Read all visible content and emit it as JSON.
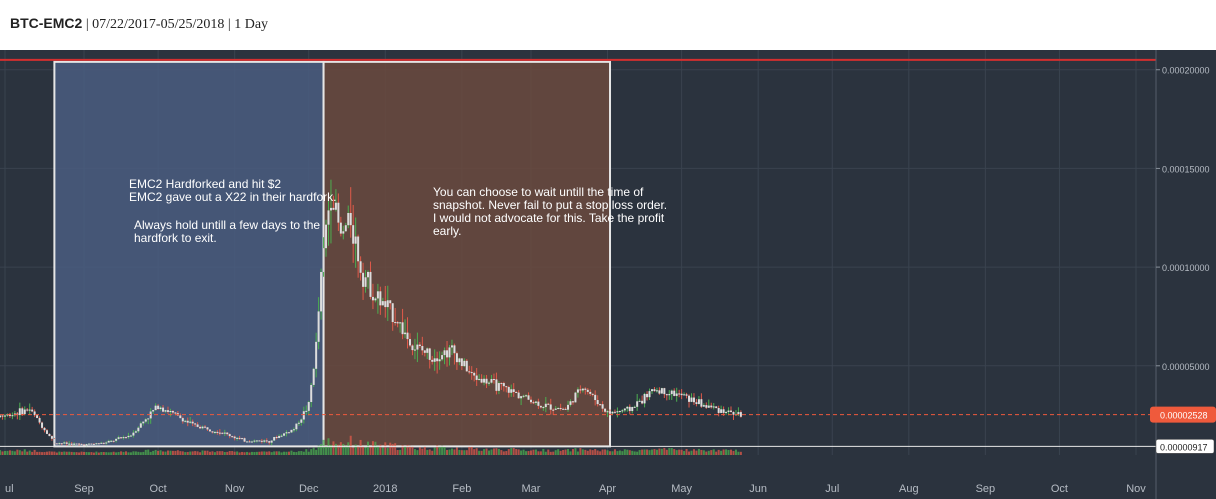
{
  "header": {
    "symbol": "BTC-EMC2",
    "separator": "|",
    "date_range": "07/22/2017-05/25/2018",
    "interval": "1 Day"
  },
  "colors": {
    "background": "#2b333e",
    "grid": "#3a434f",
    "candle_up": "#4caf50",
    "candle_down": "#e05a4a",
    "candle_body": "#dddddd",
    "resistance_line": "#d32f2f",
    "current_price_tag": "#ef5a3c",
    "box_blue": "#4a5d80",
    "box_brown": "#6b4a3e"
  },
  "annotations": {
    "box1_text_1": "EMC2 Hardforked and hit $2\nEMC2 gave out a X22 in their hardfork.",
    "box1_text_2": "Always hold untill a few days to the\nhardfork to exit.",
    "box2_text": "You can choose to wait untill the time of\nsnapshot. Never fail to put a stop loss order.\nI would not advocate for this. Take the profit\nearly."
  },
  "chart_data": {
    "type": "candlestick",
    "x_axis": {
      "ticks": [
        "ul",
        "Sep",
        "Oct",
        "Nov",
        "Dec",
        "2018",
        "Feb",
        "Mar",
        "Apr",
        "May",
        "Jun",
        "Jul",
        "Aug",
        "Sep",
        "Oct",
        "Nov"
      ],
      "tick_dates": [
        "2017-07-31",
        "2017-09-01",
        "2017-10-01",
        "2017-11-01",
        "2017-12-01",
        "2018-01-01",
        "2018-02-01",
        "2018-03-01",
        "2018-04-01",
        "2018-05-01",
        "2018-06-01",
        "2018-07-01",
        "2018-08-01",
        "2018-09-01",
        "2018-10-01",
        "2018-11-01"
      ]
    },
    "y_axis": {
      "ticks": [
        5e-05,
        0.0001,
        0.00015,
        0.0002
      ],
      "tick_labels": [
        "0.00005000",
        "0.00010000",
        "0.00015000",
        "0.00020000"
      ],
      "range": [
        4.8e-06,
        0.00021
      ]
    },
    "current_price": 2.528e-05,
    "current_price_label": "0.00002528",
    "low_price": 9.17e-06,
    "low_price_label": "0.00000917",
    "resistance_level": 0.000205,
    "regions": [
      {
        "start": "2017-08-20",
        "end": "2017-12-07",
        "top": 0.000204,
        "bottom": 9.17e-06
      },
      {
        "start": "2017-12-07",
        "end": "2018-04-02",
        "top": 0.000204,
        "bottom": 9.17e-06
      }
    ],
    "price_path": [
      [
        "2017-07-22",
        2.4e-05
      ],
      [
        "2017-08-01",
        2.5e-05
      ],
      [
        "2017-08-10",
        2.8e-05
      ],
      [
        "2017-08-20",
        1.1e-05
      ],
      [
        "2017-09-01",
        1e-05
      ],
      [
        "2017-09-10",
        1.1e-05
      ],
      [
        "2017-09-20",
        1.5e-05
      ],
      [
        "2017-10-01",
        3e-05
      ],
      [
        "2017-10-08",
        2.5e-05
      ],
      [
        "2017-10-15",
        2e-05
      ],
      [
        "2017-10-25",
        1.7e-05
      ],
      [
        "2017-11-05",
        1.2e-05
      ],
      [
        "2017-11-15",
        1.2e-05
      ],
      [
        "2017-11-25",
        1.8e-05
      ],
      [
        "2017-12-01",
        3e-05
      ],
      [
        "2017-12-04",
        6e-05
      ],
      [
        "2017-12-06",
        9.5e-05
      ],
      [
        "2017-12-08",
        0.00012
      ],
      [
        "2017-12-10",
        0.00014
      ],
      [
        "2017-12-14",
        0.000115
      ],
      [
        "2017-12-18",
        0.000125
      ],
      [
        "2017-12-22",
        0.0001
      ],
      [
        "2017-12-28",
        8.5e-05
      ],
      [
        "2018-01-05",
        7.5e-05
      ],
      [
        "2018-01-12",
        6e-05
      ],
      [
        "2018-01-20",
        5.5e-05
      ],
      [
        "2018-01-28",
        5.8e-05
      ],
      [
        "2018-02-05",
        4.5e-05
      ],
      [
        "2018-02-15",
        4e-05
      ],
      [
        "2018-02-25",
        3.5e-05
      ],
      [
        "2018-03-05",
        3e-05
      ],
      [
        "2018-03-15",
        2.8e-05
      ],
      [
        "2018-03-22",
        4e-05
      ],
      [
        "2018-04-01",
        2.6e-05
      ],
      [
        "2018-04-10",
        2.8e-05
      ],
      [
        "2018-04-20",
        3.8e-05
      ],
      [
        "2018-05-01",
        3.5e-05
      ],
      [
        "2018-05-10",
        3e-05
      ],
      [
        "2018-05-25",
        2.5e-05
      ]
    ]
  }
}
